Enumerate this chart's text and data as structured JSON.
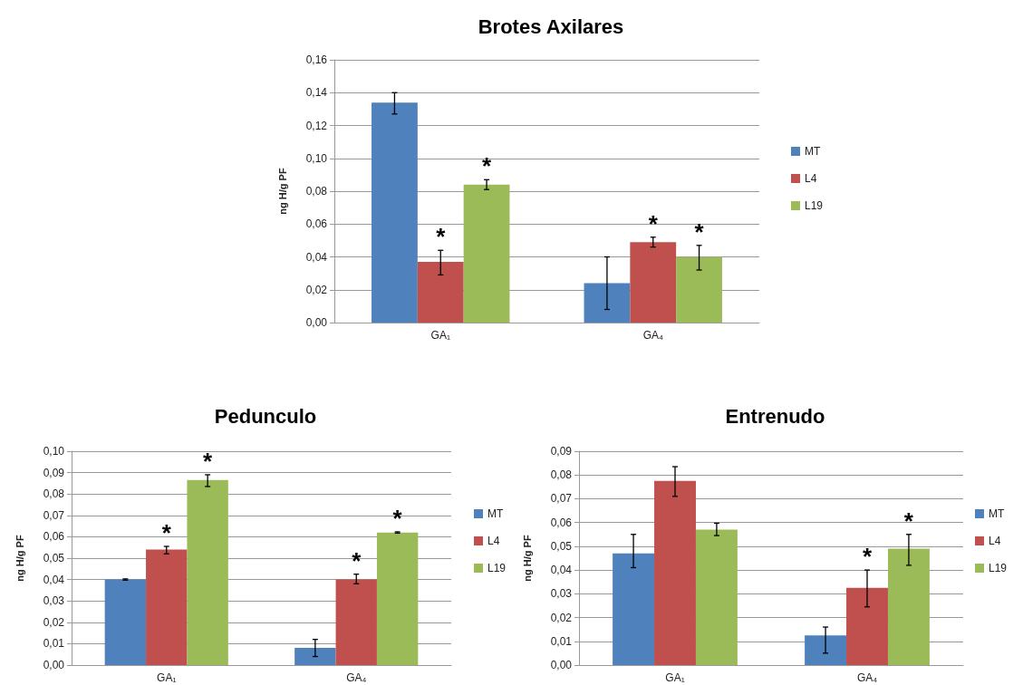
{
  "chart_data": [
    {
      "type": "bar",
      "title": "Brotes Axilares",
      "ylabel": "ng H/g PF",
      "categories": [
        "GA₁",
        "GA₄"
      ],
      "series": [
        {
          "name": "MT",
          "color": "#4f81bd",
          "values": [
            0.134,
            0.024
          ],
          "errors": [
            [
              0.127,
              0.14
            ],
            [
              0.008,
              0.04
            ]
          ],
          "value_labels": [
            null,
            null
          ]
        },
        {
          "name": "L4",
          "color": "#c0504d",
          "values": [
            0.037,
            0.049
          ],
          "errors": [
            [
              0.029,
              0.044
            ],
            [
              0.046,
              0.052
            ]
          ],
          "value_labels": [
            "*",
            "*"
          ]
        },
        {
          "name": "L19",
          "color": "#9bbb59",
          "values": [
            0.084,
            0.04
          ],
          "errors": [
            [
              0.081,
              0.087
            ],
            [
              0.032,
              0.047
            ]
          ],
          "value_labels": [
            "*",
            "*"
          ]
        }
      ],
      "ylim": [
        0,
        0.16
      ],
      "yticks": [
        {
          "value": 0,
          "label": "0,00"
        },
        {
          "value": 0.02,
          "label": "0,02"
        },
        {
          "value": 0.04,
          "label": "0,04"
        },
        {
          "value": 0.06,
          "label": "0,06"
        },
        {
          "value": 0.08,
          "label": "0,08"
        },
        {
          "value": 0.1,
          "label": "0,10"
        },
        {
          "value": 0.12,
          "label": "0,12"
        },
        {
          "value": 0.14,
          "label": "0,14"
        },
        {
          "value": 0.16,
          "label": "0,16"
        }
      ],
      "grid": "y",
      "legend": "right"
    },
    {
      "type": "bar",
      "title": "Pedunculo",
      "ylabel": "ng H/g PF",
      "categories": [
        "GA₁",
        "GA₄"
      ],
      "series": [
        {
          "name": "MT",
          "color": "#4f81bd",
          "values": [
            0.04,
            0.008
          ],
          "errors": [
            0.0003,
            [
              0.004,
              0.012
            ]
          ],
          "value_labels": [
            null,
            null
          ]
        },
        {
          "name": "L4",
          "color": "#c0504d",
          "values": [
            0.054,
            0.04
          ],
          "errors": [
            [
              0.052,
              0.0555
            ],
            [
              0.038,
              0.0425
            ]
          ],
          "value_labels": [
            "*",
            "*"
          ]
        },
        {
          "name": "L19",
          "color": "#9bbb59",
          "values": [
            0.0865,
            0.062
          ],
          "errors": [
            [
              0.0835,
              0.089
            ],
            0.0003
          ],
          "value_labels": [
            "*",
            "*"
          ]
        }
      ],
      "ylim": [
        0,
        0.1
      ],
      "yticks": [
        {
          "value": 0,
          "label": "0,00"
        },
        {
          "value": 0.01,
          "label": "0,01"
        },
        {
          "value": 0.02,
          "label": "0,02"
        },
        {
          "value": 0.03,
          "label": "0,03"
        },
        {
          "value": 0.04,
          "label": "0,04"
        },
        {
          "value": 0.05,
          "label": "0,05"
        },
        {
          "value": 0.06,
          "label": "0,06"
        },
        {
          "value": 0.07,
          "label": "0,07"
        },
        {
          "value": 0.08,
          "label": "0,08"
        },
        {
          "value": 0.09,
          "label": "0,09"
        },
        {
          "value": 0.1,
          "label": "0,10"
        }
      ],
      "grid": "y",
      "legend": "right"
    },
    {
      "type": "bar",
      "title": "Entrenudo",
      "ylabel": "ng H/g PF",
      "categories": [
        "GA₁",
        "GA₄"
      ],
      "series": [
        {
          "name": "MT",
          "color": "#4f81bd",
          "values": [
            0.047,
            0.0125
          ],
          "errors": [
            [
              0.041,
              0.055
            ],
            [
              0.005,
              0.016
            ]
          ],
          "value_labels": [
            null,
            null
          ]
        },
        {
          "name": "L4",
          "color": "#c0504d",
          "values": [
            0.0775,
            0.0325
          ],
          "errors": [
            [
              0.071,
              0.0835
            ],
            [
              0.0245,
              0.04
            ]
          ],
          "value_labels": [
            null,
            "*"
          ]
        },
        {
          "name": "L19",
          "color": "#9bbb59",
          "values": [
            0.057,
            0.049
          ],
          "errors": [
            [
              0.0545,
              0.0597
            ],
            [
              0.042,
              0.055
            ]
          ],
          "value_labels": [
            null,
            "*"
          ]
        }
      ],
      "ylim": [
        0,
        0.09
      ],
      "yticks": [
        {
          "value": 0,
          "label": "0,00"
        },
        {
          "value": 0.01,
          "label": "0,01"
        },
        {
          "value": 0.02,
          "label": "0,02"
        },
        {
          "value": 0.03,
          "label": "0,03"
        },
        {
          "value": 0.04,
          "label": "0,04"
        },
        {
          "value": 0.05,
          "label": "0,05"
        },
        {
          "value": 0.06,
          "label": "0,06"
        },
        {
          "value": 0.07,
          "label": "0,07"
        },
        {
          "value": 0.08,
          "label": "0,08"
        },
        {
          "value": 0.09,
          "label": "0,09"
        }
      ],
      "grid": "y",
      "legend": "right"
    }
  ]
}
